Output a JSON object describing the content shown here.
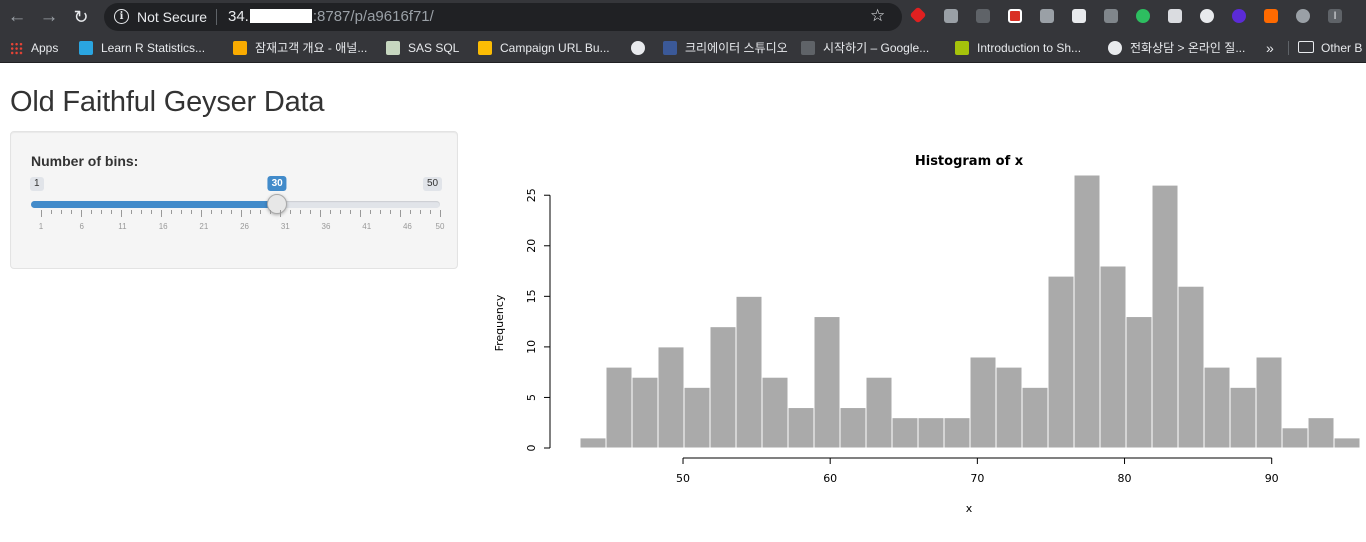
{
  "browser": {
    "security_label": "Not Secure",
    "url_host": "34.",
    "url_rest": ":8787/p/a9616f71/",
    "bookmarks": [
      {
        "label": "Apps",
        "icon": "apps-grid-icon",
        "color": "#ea4335"
      },
      {
        "label": "Learn R Statistics...",
        "icon": "shield-icon",
        "color": "#2aa5e0"
      },
      {
        "label": "잠재고객 개요 - 애널...",
        "icon": "analytics-icon",
        "color": "#f9ab00"
      },
      {
        "label": "SAS SQL",
        "icon": "sas-icon",
        "color": "#c7d7c0"
      },
      {
        "label": "Campaign URL Bu...",
        "icon": "chrome-icon",
        "color": "#fbbc04"
      },
      {
        "label": "",
        "icon": "globe-icon",
        "color": "#e8eaed"
      },
      {
        "label": "크리에이터 스튜디오",
        "icon": "facebook-icon",
        "color": "#3b5998"
      },
      {
        "label": "시작하기 – Google...",
        "icon": "google-icon",
        "color": "#5f6368"
      },
      {
        "label": "Introduction to Sh...",
        "icon": "m-icon",
        "color": "#a5c30b"
      },
      {
        "label": "전화상담 > 온라인 질...",
        "icon": "globe-icon",
        "color": "#e8eaed"
      }
    ],
    "other_bookmarks": "Other B"
  },
  "page": {
    "title": "Old Faithful Geyser Data"
  },
  "slider": {
    "label": "Number of bins:",
    "min": 1,
    "max": 50,
    "value": 30,
    "min_label": "1",
    "max_label": "50",
    "value_label": "30",
    "tick_labels": [
      "1",
      "6",
      "11",
      "16",
      "21",
      "26",
      "31",
      "36",
      "41",
      "46",
      "50"
    ],
    "accent_color": "#428bca"
  },
  "chart_data": {
    "type": "bar",
    "title": "Histogram of x",
    "xlabel": "x",
    "ylabel": "Frequency",
    "bin_start": 43,
    "bin_width": 1.7667,
    "values": [
      1,
      8,
      7,
      10,
      6,
      12,
      15,
      7,
      4,
      13,
      4,
      7,
      3,
      3,
      3,
      9,
      8,
      6,
      17,
      27,
      18,
      13,
      26,
      16,
      8,
      6,
      9,
      2,
      3,
      1
    ],
    "x_ticks": [
      50,
      60,
      70,
      80,
      90
    ],
    "y_ticks": [
      0,
      5,
      10,
      15,
      20,
      25
    ],
    "xlim": [
      43,
      96
    ],
    "ylim": [
      0,
      27
    ],
    "bar_color": "#aaaaaa",
    "grid": false
  }
}
